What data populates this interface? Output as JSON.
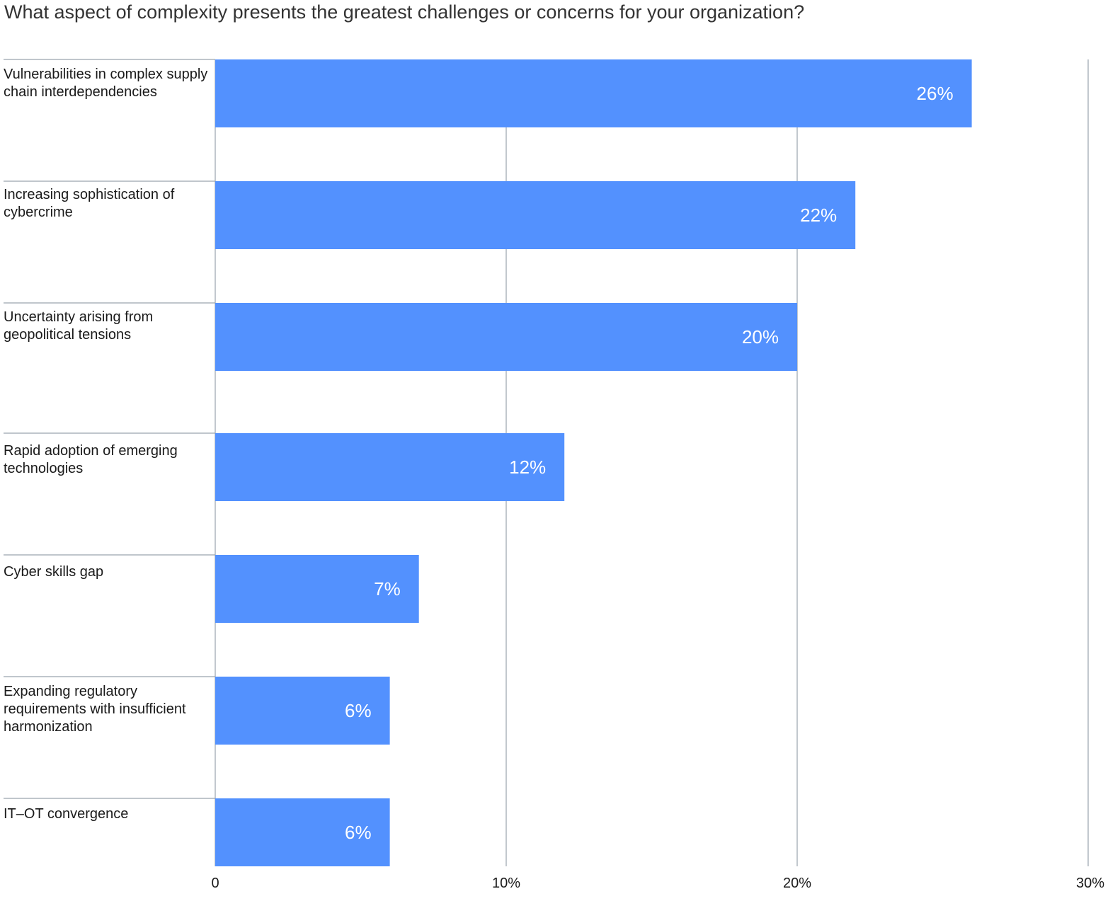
{
  "chart_data": {
    "type": "bar",
    "orientation": "horizontal",
    "title": "What aspect of complexity presents the greatest challenges or concerns for your organization?",
    "categories": [
      "Vulnerabilities in complex supply chain interdependencies",
      "Increasing sophistication of cybercrime",
      "Uncertainty arising from geopolitical tensions",
      "Rapid adoption of emerging technologies",
      "Cyber skills gap",
      "Expanding regulatory requirements with insufficient harmonization",
      "IT–OT convergence"
    ],
    "values": [
      26,
      22,
      20,
      12,
      7,
      6,
      6
    ],
    "data_labels": [
      "26%",
      "22%",
      "20%",
      "12%",
      "7%",
      "6%",
      "6%"
    ],
    "x_ticks": [
      0,
      10,
      20,
      30
    ],
    "x_tick_labels": [
      "0",
      "10%",
      "20%",
      "30%"
    ],
    "xlim": [
      0,
      30
    ],
    "xlabel": "",
    "ylabel": "",
    "grid": true,
    "legend": "none",
    "colors": {
      "bar": "#5391fe",
      "data_label": "#ffffff",
      "gridline": "#9aa3ad",
      "separator": "#9aa3ad"
    }
  }
}
